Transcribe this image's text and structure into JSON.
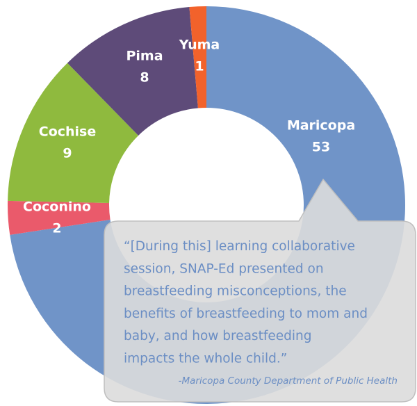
{
  "chart_data": {
    "type": "donut",
    "categories": [
      "Maricopa",
      "Coconino",
      "Cochise",
      "Pima",
      "Yuma"
    ],
    "values": [
      53,
      2,
      9,
      8,
      1
    ],
    "colors": [
      "#7094c8",
      "#ea5a6b",
      "#8fba3e",
      "#5e4b79",
      "#f2622b"
    ],
    "quote": [
      "“[During this] learning collaborative",
      "session, SNAP-Ed presented on",
      "breastfeeding misconceptions, the",
      "benefits of breastfeeding to mom and",
      "baby, and how breastfeeding",
      "impacts the whole child.”"
    ],
    "attribution": "-Maricopa County Department of Public Health"
  }
}
